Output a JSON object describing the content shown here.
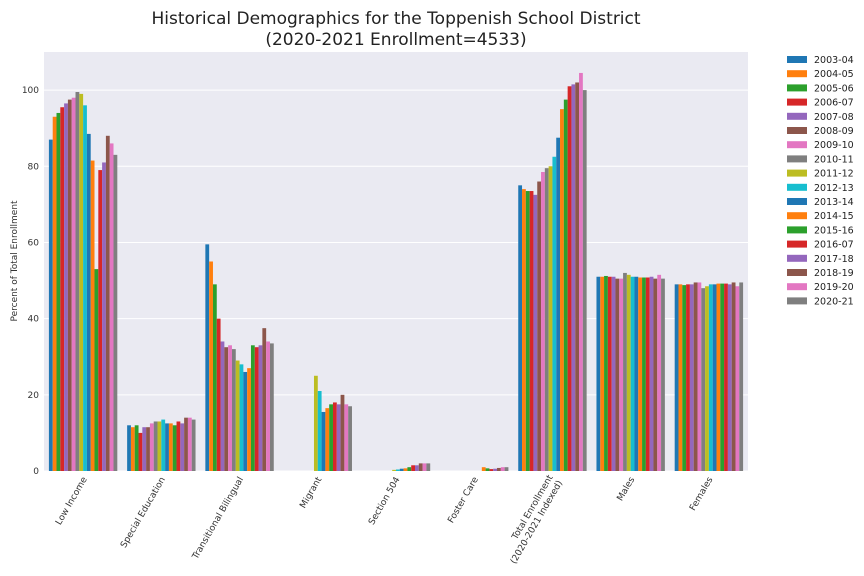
{
  "chart_data": {
    "type": "bar",
    "title": [
      "Historical Demographics for the Toppenish School District",
      "(2020-2021 Enrollment=4533)"
    ],
    "xlabel": "",
    "ylabel": "Percent of Total Enrollment",
    "ylim": [
      0,
      110
    ],
    "yticks": [
      0,
      20,
      40,
      60,
      80,
      100
    ],
    "grid": true,
    "legend_position": "outside-right",
    "categories": [
      [
        "Low Income"
      ],
      [
        "Special Education"
      ],
      [
        "Transitional Bilingual"
      ],
      [
        "Migrant"
      ],
      [
        "Section 504"
      ],
      [
        "Foster Care"
      ],
      [
        "Total Enrollment",
        "(2020-2021 Indexed)"
      ],
      [
        "Males"
      ],
      [
        "Females"
      ]
    ],
    "series": [
      {
        "name": "2003-04",
        "color": "#1f77b4",
        "values": [
          87.0,
          12.0,
          59.5,
          null,
          null,
          null,
          75.0,
          51.0,
          49.0
        ]
      },
      {
        "name": "2004-05",
        "color": "#ff7f0e",
        "values": [
          93.0,
          11.5,
          55.0,
          null,
          null,
          null,
          74.0,
          51.0,
          49.0
        ]
      },
      {
        "name": "2005-06",
        "color": "#2ca02c",
        "values": [
          94.0,
          12.0,
          49.0,
          null,
          null,
          null,
          73.5,
          51.2,
          48.8
        ]
      },
      {
        "name": "2006-07",
        "color": "#d62728",
        "values": [
          95.5,
          10.0,
          40.0,
          null,
          null,
          null,
          73.5,
          51.0,
          49.0
        ]
      },
      {
        "name": "2007-08",
        "color": "#9467bd",
        "values": [
          96.5,
          11.5,
          34.0,
          null,
          null,
          null,
          72.5,
          51.0,
          49.0
        ]
      },
      {
        "name": "2008-09",
        "color": "#8c564b",
        "values": [
          97.5,
          11.5,
          32.5,
          null,
          null,
          null,
          76.0,
          50.5,
          49.5
        ]
      },
      {
        "name": "2009-10",
        "color": "#e377c2",
        "values": [
          98.0,
          12.5,
          33.0,
          null,
          null,
          null,
          78.5,
          50.5,
          49.5
        ]
      },
      {
        "name": "2010-11",
        "color": "#7f7f7f",
        "values": [
          99.5,
          13.0,
          32.0,
          null,
          null,
          null,
          79.5,
          52.0,
          48.0
        ]
      },
      {
        "name": "2011-12",
        "color": "#bcbd22",
        "values": [
          99.0,
          13.0,
          29.0,
          25.0,
          0.3,
          null,
          80.0,
          51.5,
          48.5
        ]
      },
      {
        "name": "2012-13",
        "color": "#17becf",
        "values": [
          96.0,
          13.5,
          28.0,
          21.0,
          0.4,
          null,
          82.5,
          51.0,
          49.0
        ]
      },
      {
        "name": "2013-14",
        "color": "#1f77b4",
        "values": [
          88.5,
          12.5,
          26.0,
          15.5,
          0.6,
          null,
          87.5,
          51.0,
          49.0
        ]
      },
      {
        "name": "2014-15",
        "color": "#ff7f0e",
        "values": [
          81.5,
          12.5,
          27.0,
          16.5,
          0.7,
          1.0,
          95.0,
          50.8,
          49.2
        ]
      },
      {
        "name": "2015-16",
        "color": "#2ca02c",
        "values": [
          53.0,
          12.0,
          33.0,
          17.5,
          1.0,
          0.7,
          97.5,
          50.8,
          49.2
        ]
      },
      {
        "name": "2016-07",
        "color": "#d62728",
        "values": [
          79.0,
          13.0,
          32.5,
          18.0,
          1.5,
          0.5,
          101.0,
          50.8,
          49.2
        ]
      },
      {
        "name": "2017-18",
        "color": "#9467bd",
        "values": [
          81.0,
          12.5,
          33.0,
          17.5,
          1.5,
          0.6,
          101.5,
          51.0,
          49.0
        ]
      },
      {
        "name": "2018-19",
        "color": "#8c564b",
        "values": [
          88.0,
          14.0,
          37.5,
          20.0,
          2.0,
          0.8,
          102.0,
          50.5,
          49.5
        ]
      },
      {
        "name": "2019-20",
        "color": "#e377c2",
        "values": [
          86.0,
          14.0,
          34.0,
          17.5,
          2.0,
          1.0,
          104.5,
          51.5,
          48.5
        ]
      },
      {
        "name": "2020-21",
        "color": "#7f7f7f",
        "values": [
          83.0,
          13.5,
          33.5,
          17.0,
          2.0,
          1.0,
          100.0,
          50.5,
          49.5
        ]
      }
    ]
  }
}
